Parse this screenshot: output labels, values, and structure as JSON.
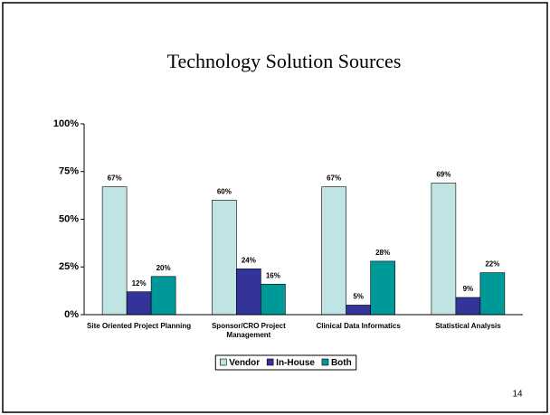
{
  "chart_data": {
    "type": "bar",
    "title": "Technology Solution Sources",
    "categories": [
      "Site Oriented Project Planning",
      "Sponsor/CRO Project Management",
      "Clinical Data Informatics",
      "Statistical Analysis"
    ],
    "series": [
      {
        "name": "Vendor",
        "color": "#c0e4e4",
        "values": [
          67,
          60,
          67,
          69
        ],
        "value_labels": [
          "67%",
          "60%",
          "67%",
          "69%"
        ]
      },
      {
        "name": "In-House",
        "color": "#333399",
        "values": [
          12,
          24,
          5,
          9
        ],
        "value_labels": [
          "12%",
          "24%",
          "5%",
          "9%"
        ]
      },
      {
        "name": "Both",
        "color": "#009999",
        "values": [
          20,
          16,
          28,
          22
        ],
        "value_labels": [
          "20%",
          "16%",
          "28%",
          "22%"
        ]
      }
    ],
    "ylim": [
      0,
      100
    ],
    "yticks": [
      {
        "value": 0,
        "label": "0%"
      },
      {
        "value": 25,
        "label": "25%"
      },
      {
        "value": 50,
        "label": "50%"
      },
      {
        "value": 75,
        "label": "75%"
      },
      {
        "value": 100,
        "label": "100%"
      }
    ],
    "grid": false,
    "legend": "bottom",
    "page_number": "14"
  }
}
